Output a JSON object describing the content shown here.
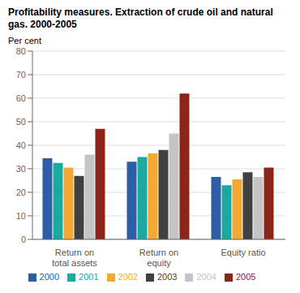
{
  "chart_data": {
    "type": "bar",
    "title": "Profitability measures. Extraction of crude oil and natural\ngas. 2000-2005",
    "y_label": "Per cent",
    "categories": [
      "Return on\ntotal assets",
      "Return on\nequity",
      "Equity ratio"
    ],
    "series": [
      {
        "name": "2000",
        "color": "#2b5ea6",
        "values": [
          34.5,
          33.0,
          26.5
        ]
      },
      {
        "name": "2001",
        "color": "#1ba9a0",
        "values": [
          32.5,
          35.0,
          23.0
        ]
      },
      {
        "name": "2002",
        "color": "#f5a831",
        "values": [
          30.5,
          36.5,
          25.5
        ]
      },
      {
        "name": "2003",
        "color": "#404040",
        "values": [
          27.0,
          38.0,
          28.5
        ]
      },
      {
        "name": "2004",
        "color": "#c5c5c5",
        "values": [
          36.0,
          45.0,
          26.5
        ]
      },
      {
        "name": "2005",
        "color": "#8b2518",
        "values": [
          47.0,
          62.0,
          30.5
        ]
      }
    ],
    "ylim": [
      0,
      80
    ],
    "yticks": [
      0,
      10,
      20,
      30,
      40,
      50,
      60,
      70,
      80
    ],
    "grid": true,
    "legend": "bottom"
  }
}
